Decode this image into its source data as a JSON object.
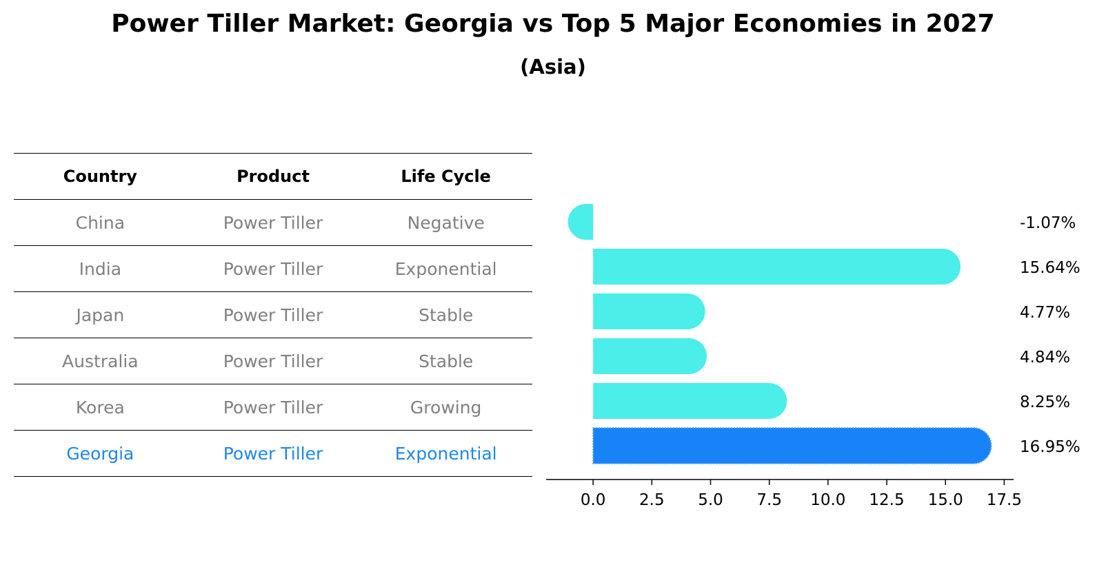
{
  "title": "Power Tiller Market: Georgia vs Top 5 Major Economies in 2027",
  "subtitle": "(Asia)",
  "table": {
    "headers": [
      "Country",
      "Product",
      "Life Cycle"
    ],
    "rows": [
      [
        "China",
        "Power Tiller",
        "Negative"
      ],
      [
        "India",
        "Power Tiller",
        "Exponential"
      ],
      [
        "Japan",
        "Power Tiller",
        "Stable"
      ],
      [
        "Australia",
        "Power Tiller",
        "Stable"
      ],
      [
        "Korea",
        "Power Tiller",
        "Growing"
      ],
      [
        "Georgia",
        "Power Tiller",
        "Exponential"
      ]
    ],
    "highlight_row": 5,
    "highlight_color": "#1e88e5",
    "text_color": "#808080"
  },
  "chart_data": {
    "type": "bar",
    "orientation": "horizontal",
    "categories": [
      "China",
      "India",
      "Japan",
      "Australia",
      "Korea",
      "Georgia"
    ],
    "values": [
      -1.07,
      15.64,
      4.77,
      4.84,
      8.25,
      16.95
    ],
    "value_labels": [
      "-1.07%",
      "15.64%",
      "4.77%",
      "4.84%",
      "8.25%",
      "16.95%"
    ],
    "xlim": [
      -2,
      17.9
    ],
    "xticks": [
      0.0,
      2.5,
      5.0,
      7.5,
      10.0,
      12.5,
      15.0,
      17.5
    ],
    "xtick_labels": [
      "0.0",
      "2.5",
      "5.0",
      "7.5",
      "10.0",
      "12.5",
      "15.0",
      "17.5"
    ],
    "bar_color": "#4beee9",
    "highlight_color": "#1883f6",
    "highlight_index": 5,
    "grid": false,
    "legend": "none"
  }
}
